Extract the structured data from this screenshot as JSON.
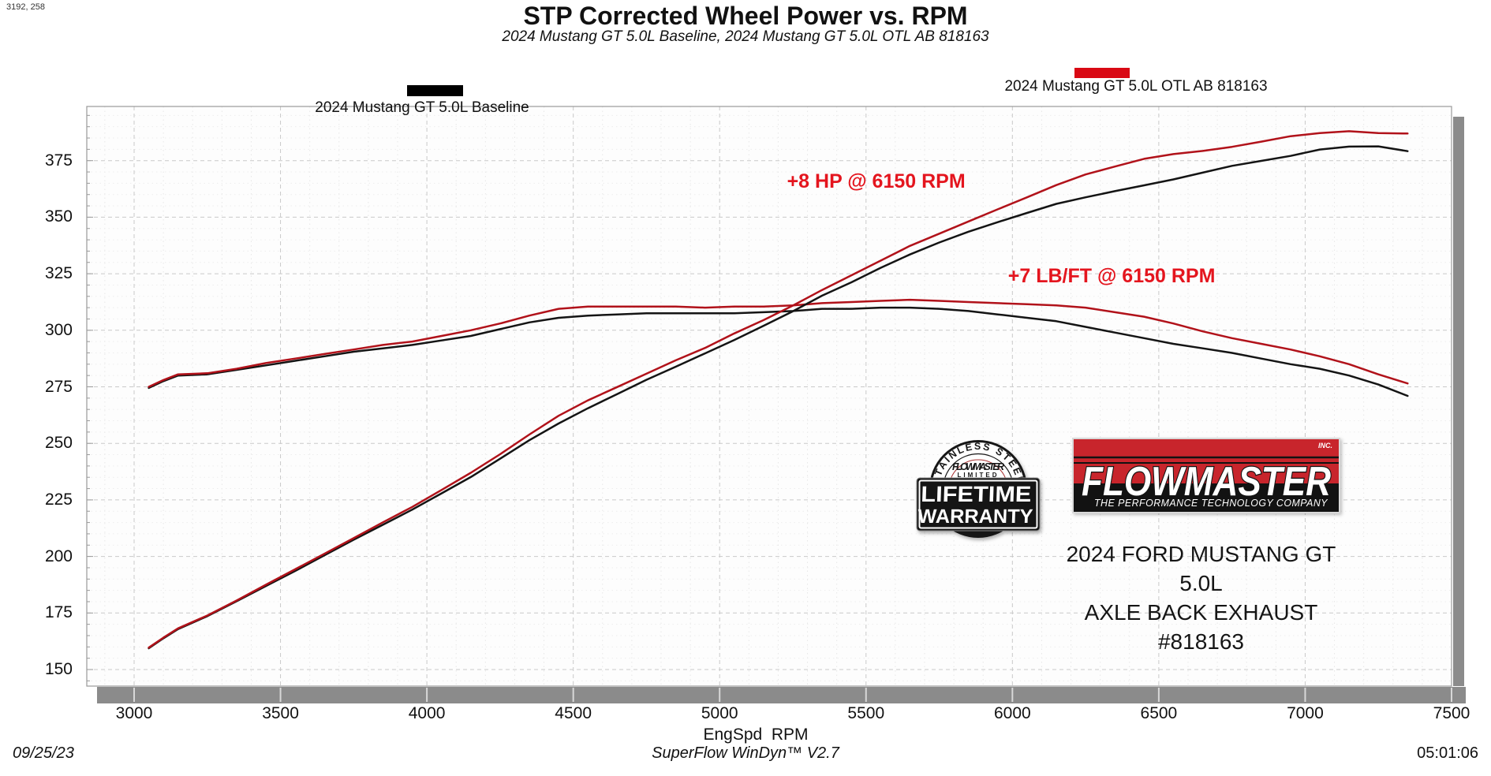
{
  "window": {
    "coords_label": "3192, 258"
  },
  "header": {
    "title": "STP Corrected Wheel Power vs. RPM",
    "subtitle": "2024 Mustang GT 5.0L Baseline, 2024 Mustang GT 5.0L OTL AB 818163"
  },
  "legend": [
    {
      "label": "2024 Mustang GT 5.0L Baseline",
      "color": "#000000"
    },
    {
      "label": "2024 Mustang GT 5.0L OTL AB 818163",
      "color": "#d90914"
    }
  ],
  "chart_data": {
    "type": "line",
    "title": "STP Corrected Wheel Power vs. RPM",
    "xlabel": "EngSpd  RPM",
    "ylabel": "",
    "xlim": [
      2840,
      7500
    ],
    "ylim": [
      143,
      399
    ],
    "x_ticks": [
      3000,
      3500,
      4000,
      4500,
      5000,
      5500,
      6000,
      6500,
      7000,
      7500
    ],
    "y_ticks": [
      150,
      175,
      200,
      225,
      250,
      275,
      300,
      325,
      350,
      375
    ],
    "grid": "major dashed gray, minor dotted light, legend above chart",
    "x": [
      3050,
      3100,
      3150,
      3250,
      3350,
      3450,
      3550,
      3650,
      3750,
      3850,
      3950,
      4050,
      4150,
      4250,
      4350,
      4450,
      4550,
      4650,
      4750,
      4850,
      4950,
      5050,
      5150,
      5250,
      5350,
      5450,
      5550,
      5650,
      5750,
      5850,
      5950,
      6050,
      6150,
      6250,
      6350,
      6450,
      6550,
      6650,
      6750,
      6850,
      6950,
      7050,
      7150,
      7250,
      7350
    ],
    "series": [
      {
        "name": "2024 Mustang GT 5.0L Baseline",
        "unit": "HP",
        "color": "#141414",
        "values": [
          159.4,
          163.8,
          167.9,
          173.6,
          180.2,
          186.9,
          193.6,
          200.5,
          207.4,
          214.0,
          220.7,
          227.9,
          235.1,
          243.2,
          251.4,
          258.8,
          265.5,
          271.8,
          278.1,
          283.9,
          289.8,
          295.7,
          302.0,
          308.4,
          315.3,
          321.2,
          327.6,
          333.5,
          338.8,
          343.6,
          347.8,
          351.9,
          355.9,
          358.8,
          361.5,
          364.1,
          366.7,
          369.7,
          372.7,
          374.9,
          377.1,
          379.9,
          381.2,
          381.3,
          379.2
        ]
      },
      {
        "name": "2024 Mustang GT 5.0L OTL AB 818163",
        "unit": "HP",
        "color": "#b1121a",
        "values": [
          159.7,
          164.1,
          168.2,
          173.9,
          180.5,
          187.5,
          194.3,
          201.2,
          208.1,
          215.1,
          221.9,
          229.4,
          237.0,
          245.2,
          253.9,
          262.2,
          269.0,
          274.9,
          280.8,
          286.7,
          292.2,
          298.6,
          304.5,
          310.9,
          317.8,
          324.3,
          330.8,
          337.3,
          342.7,
          348.1,
          353.5,
          358.8,
          364.2,
          368.9,
          372.4,
          375.8,
          377.9,
          379.3,
          381.1,
          383.4,
          385.8,
          387.2,
          388.0,
          387.2,
          387.0
        ]
      },
      {
        "name": "2024 Mustang GT 5.0L Baseline",
        "unit": "LB/FT",
        "color": "#141414",
        "values": [
          274.5,
          277.5,
          280.0,
          280.5,
          282.5,
          284.5,
          286.5,
          288.5,
          290.5,
          292.0,
          293.5,
          295.5,
          297.5,
          300.5,
          303.5,
          305.5,
          306.5,
          307.0,
          307.5,
          307.5,
          307.5,
          307.5,
          308.0,
          308.5,
          309.5,
          309.5,
          310.0,
          310.0,
          309.5,
          308.5,
          307.0,
          305.5,
          304.0,
          301.5,
          299.0,
          296.5,
          294.0,
          292.0,
          290.0,
          287.5,
          285.0,
          283.0,
          280.0,
          276.0,
          271.0
        ]
      },
      {
        "name": "2024 Mustang GT 5.0L OTL AB 818163",
        "unit": "LB/FT",
        "color": "#b1121a",
        "values": [
          275.0,
          278.0,
          280.5,
          281.0,
          283.0,
          285.5,
          287.5,
          289.5,
          291.5,
          293.5,
          295.0,
          297.5,
          300.0,
          303.0,
          306.5,
          309.5,
          310.5,
          310.5,
          310.5,
          310.5,
          310.0,
          310.5,
          310.5,
          311.0,
          312.0,
          312.5,
          313.0,
          313.5,
          313.0,
          312.5,
          312.0,
          311.5,
          311.0,
          310.0,
          308.0,
          306.0,
          303.0,
          299.5,
          296.5,
          294.0,
          291.5,
          288.5,
          285.0,
          280.5,
          276.5
        ]
      }
    ],
    "annotations": [
      {
        "text": "+8 HP @ 6150 RPM",
        "color": "#e4151e",
        "rpm": 5230,
        "value": 362
      },
      {
        "text": "+7 LB/FT @ 6150 RPM",
        "color": "#e4151e",
        "rpm": 5985,
        "value": 320
      }
    ],
    "legend_position": "top"
  },
  "axis": {
    "x_label": "EngSpd  RPM"
  },
  "branding": {
    "badge": {
      "arc_text": "STAINLESS STEEL",
      "brand": "FLOWMASTER",
      "line1": "LIMITED",
      "line2": "LIFETIME",
      "line3": "WARRANTY"
    },
    "logo": {
      "name": "FLOWMASTER",
      "inc": "INC.",
      "tagline": "THE PERFORMANCE TECHNOLOGY COMPANY",
      "red": "#c8252c",
      "black": "#121212"
    },
    "vehicle_line1": "2024 FORD MUSTANG GT 5.0L",
    "vehicle_line2": "AXLE BACK EXHAUST #818163"
  },
  "footer": {
    "date": "09/25/23",
    "software": "SuperFlow WinDyn™ V2.7",
    "time": "05:01:06"
  }
}
